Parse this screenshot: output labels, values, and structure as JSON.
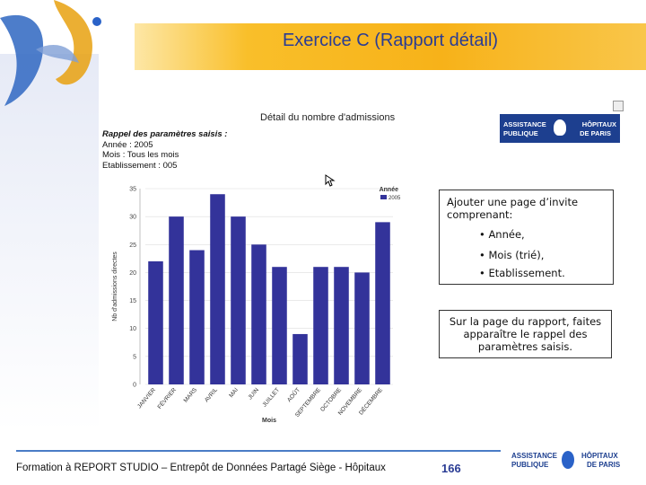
{
  "slide": {
    "title": "Exercice C (Rapport détail)",
    "footer": "Formation à REPORT STUDIO – Entrepôt de Données Partagé Siège - Hôpitaux",
    "page_number": "166"
  },
  "report": {
    "heading": "Détail du nombre d'admissions",
    "params_title": "Rappel des paramètres saisis :",
    "param_year": "Année : 2005",
    "param_month": "Mois : Tous les mois",
    "param_estab": "Etablissement : 005"
  },
  "logo": {
    "left_top": "ASSISTANCE",
    "left_bottom": "PUBLIQUE",
    "right_top": "HÔPITAUX",
    "right_bottom": "DE PARIS"
  },
  "notes": {
    "box1_lead": "Ajouter une page d’invite comprenant:",
    "box1_bullet1": "• Année,",
    "box1_bullet2": "• Mois (trié),",
    "box1_bullet3": "• Etablissement.",
    "box2": "Sur la page du rapport, faites apparaître le rappel des paramètres saisis."
  },
  "colors": {
    "bar": "#33339a",
    "title": "#2a3c94",
    "band": "#f7b219"
  },
  "chart_data": {
    "type": "bar",
    "title": "Détail du nombre d'admissions",
    "xlabel": "Mois",
    "ylabel": "Nb d'admissions directes",
    "ylim": [
      0,
      35
    ],
    "yticks": [
      0,
      5,
      10,
      15,
      20,
      25,
      30,
      35
    ],
    "legend_title": "Année",
    "legend_placement": "top-right",
    "series": [
      {
        "name": "2005",
        "values": [
          22,
          30,
          24,
          34,
          30,
          25,
          21,
          9,
          21,
          21,
          20,
          29
        ]
      }
    ],
    "categories": [
      "JANVIER",
      "FÉVRIER",
      "MARS",
      "AVRIL",
      "MAI",
      "JUIN",
      "JUILLET",
      "AOÛT",
      "SEPTEMBRE",
      "OCTOBRE",
      "NOVEMBRE",
      "DÉCEMBRE"
    ]
  }
}
